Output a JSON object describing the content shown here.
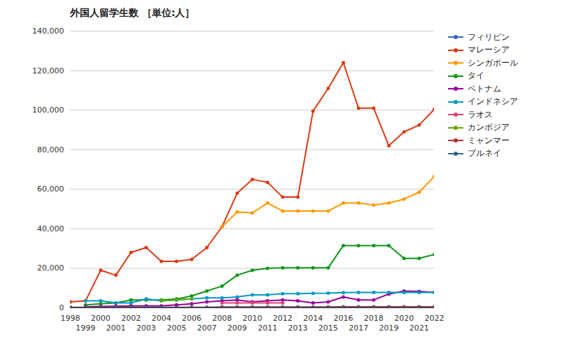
{
  "chart_data": {
    "type": "line",
    "title": "外国人留学生数 ［単位:人］",
    "marker": "circle",
    "grid": true,
    "legend": "right",
    "x": [
      1998,
      1999,
      2000,
      2001,
      2002,
      2003,
      2004,
      2005,
      2006,
      2007,
      2008,
      2009,
      2010,
      2011,
      2012,
      2013,
      2014,
      2015,
      2016,
      2017,
      2018,
      2019,
      2020,
      2021,
      2022
    ],
    "xlim": [
      1998,
      2022
    ],
    "xticks": [
      1998,
      1999,
      2000,
      2001,
      2002,
      2003,
      2004,
      2005,
      2006,
      2007,
      2008,
      2009,
      2010,
      2011,
      2012,
      2013,
      2014,
      2015,
      2016,
      2017,
      2018,
      2019,
      2020,
      2021,
      2022
    ],
    "ylim": [
      0,
      140000
    ],
    "yticks": [
      0,
      {
        "value": 20000,
        "label": "20,000"
      },
      {
        "value": 40000,
        "label": "40,000"
      },
      {
        "value": 60000,
        "label": "60,000"
      },
      {
        "value": 80000,
        "label": "80,000"
      },
      {
        "value": 100000,
        "label": "100,000"
      },
      {
        "value": 120000,
        "label": "120,000"
      },
      {
        "value": 140000,
        "label": "140,000"
      }
    ],
    "series": [
      {
        "name": "フィリピン",
        "color": "#3366cc",
        "values": [
          200,
          200,
          200,
          200,
          200,
          200,
          200,
          200,
          200,
          200,
          200,
          200,
          200,
          200,
          200,
          200,
          200,
          200,
          200,
          200,
          200,
          200,
          200,
          200,
          200
        ]
      },
      {
        "name": "マレーシア",
        "color": "#dc3912",
        "values": [
          3000,
          3500,
          19000,
          16500,
          28000,
          30500,
          23500,
          23500,
          24500,
          30500,
          41000,
          58000,
          65000,
          63500,
          56000,
          56000,
          99500,
          111000,
          124000,
          101000,
          101000,
          82000,
          89000,
          92500,
          100500
        ]
      },
      {
        "name": "シンガポール",
        "color": "#ff9900",
        "values": [
          null,
          null,
          null,
          null,
          null,
          null,
          null,
          null,
          null,
          null,
          41000,
          48500,
          48000,
          53000,
          49000,
          49000,
          49000,
          49000,
          53000,
          53000,
          52000,
          53000,
          55000,
          58500,
          66500
        ]
      },
      {
        "name": "タイ",
        "color": "#109618",
        "values": [
          null,
          1500,
          2000,
          2500,
          4000,
          4000,
          4000,
          4500,
          6000,
          8500,
          11000,
          16500,
          19000,
          20000,
          20200,
          20200,
          20200,
          20200,
          31500,
          31500,
          31500,
          31500,
          25000,
          25000,
          27000
        ]
      },
      {
        "name": "ベトナム",
        "color": "#990099",
        "values": [
          null,
          500,
          700,
          800,
          1000,
          1000,
          1000,
          1500,
          2000,
          3000,
          3500,
          4000,
          3000,
          3500,
          4000,
          3500,
          2500,
          3000,
          5500,
          4000,
          4000,
          7000,
          8500,
          8300,
          7800
        ]
      },
      {
        "name": "インドネシア",
        "color": "#0099c6",
        "values": [
          null,
          3500,
          3500,
          2500,
          2500,
          4500,
          3500,
          4000,
          4500,
          5000,
          5000,
          5500,
          6500,
          6500,
          7200,
          7200,
          7300,
          7400,
          7700,
          7800,
          7800,
          7800,
          7800,
          7800,
          7800
        ]
      },
      {
        "name": "ラオス",
        "color": "#dd4477",
        "values": [
          null,
          null,
          null,
          null,
          null,
          null,
          null,
          null,
          null,
          null,
          2500,
          2500,
          2500,
          2500,
          2500,
          null,
          null,
          null,
          null,
          null,
          null,
          null,
          null,
          null,
          null
        ]
      },
      {
        "name": "カンボジア",
        "color": "#66aa00",
        "values": [
          null,
          null,
          null,
          null,
          null,
          null,
          3500,
          4000,
          4500,
          null,
          null,
          null,
          null,
          null,
          null,
          null,
          null,
          null,
          null,
          null,
          null,
          null,
          null,
          null,
          null
        ]
      },
      {
        "name": "ミャンマー",
        "color": "#b82e2e",
        "values": [
          300,
          300,
          300,
          300,
          300,
          300,
          300,
          300,
          300,
          300,
          400,
          400,
          400,
          400,
          400,
          400,
          400,
          400,
          500,
          500,
          500,
          500,
          500,
          500,
          500
        ]
      },
      {
        "name": "ブルネイ",
        "color": "#316395",
        "values": [
          100,
          100,
          100,
          100,
          100,
          100,
          100,
          100,
          100,
          100,
          100,
          100,
          100,
          100,
          100,
          100,
          100,
          100,
          100,
          100,
          100,
          100,
          100,
          100,
          100
        ]
      }
    ]
  }
}
